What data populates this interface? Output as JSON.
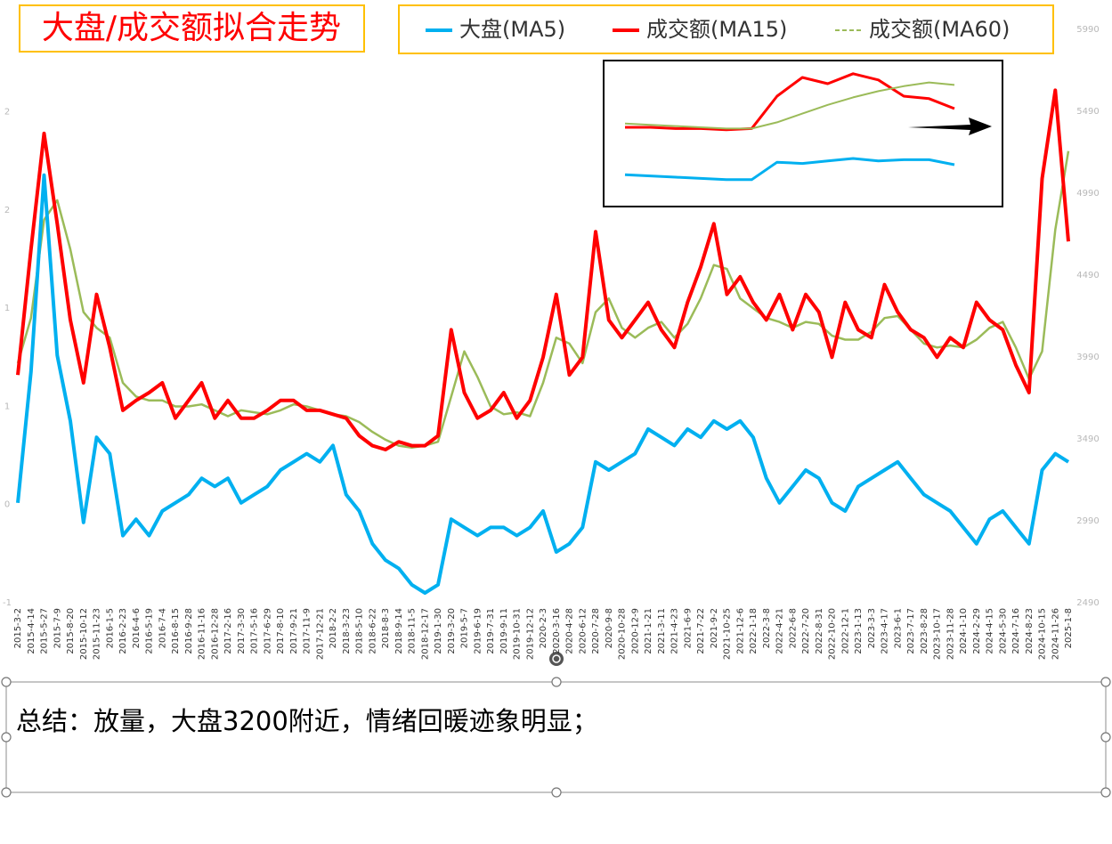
{
  "chart_data": [
    {
      "type": "line",
      "title": "大盘/成交额拟合走势",
      "categories": [
        "2015-3-2",
        "2015-4-14",
        "2015-5-27",
        "2015-7-9",
        "2015-8-20",
        "2015-10-12",
        "2015-11-23",
        "2016-1-5",
        "2016-2-23",
        "2016-4-6",
        "2016-5-19",
        "2016-7-4",
        "2016-8-15",
        "2016-9-28",
        "2016-11-16",
        "2016-12-28",
        "2017-2-16",
        "2017-3-30",
        "2017-5-16",
        "2017-6-29",
        "2017-8-10",
        "2017-9-21",
        "2017-11-9",
        "2017-12-21",
        "2018-2-2",
        "2018-3-23",
        "2018-5-10",
        "2018-6-22",
        "2018-8-3",
        "2018-9-14",
        "2018-11-5",
        "2018-12-17",
        "2019-1-30",
        "2019-3-20",
        "2019-5-7",
        "2019-6-19",
        "2019-7-31",
        "2019-9-11",
        "2019-10-31",
        "2019-12-12",
        "2020-2-3",
        "2020-3-16",
        "2020-4-28",
        "2020-6-12",
        "2020-7-28",
        "2020-9-8",
        "2020-10-28",
        "2020-12-9",
        "2021-1-21",
        "2021-3-11",
        "2021-4-23",
        "2021-6-9",
        "2021-7-22",
        "2021-9-2",
        "2021-10-25",
        "2021-12-6",
        "2022-1-18",
        "2022-3-8",
        "2022-4-21",
        "2022-6-8",
        "2022-7-20",
        "2022-8-31",
        "2022-10-20",
        "2022-12-1",
        "2023-1-13",
        "2023-3-3",
        "2023-4-17",
        "2023-6-1",
        "2023-7-17",
        "2023-8-28",
        "2023-10-17",
        "2023-11-28",
        "2024-1-10",
        "2024-2-29",
        "2024-4-15",
        "2024-5-30",
        "2024-7-16",
        "2024-8-23",
        "2024-10-15",
        "2024-11-26",
        "2025-1-8"
      ],
      "series": [
        {
          "name": "大盘(MA5)",
          "color": "#00b0f0",
          "axis": "y2",
          "width": 4,
          "values": [
            3100,
            3900,
            5100,
            4000,
            3600,
            2980,
            3500,
            3400,
            2900,
            3000,
            2900,
            3050,
            3100,
            3150,
            3250,
            3200,
            3250,
            3100,
            3150,
            3200,
            3300,
            3350,
            3400,
            3350,
            3450,
            3150,
            3050,
            2850,
            2750,
            2700,
            2600,
            2550,
            2600,
            3000,
            2950,
            2900,
            2950,
            2950,
            2900,
            2950,
            3050,
            2800,
            2850,
            2950,
            3350,
            3300,
            3350,
            3400,
            3550,
            3500,
            3450,
            3550,
            3500,
            3600,
            3550,
            3600,
            3500,
            3250,
            3100,
            3200,
            3300,
            3250,
            3100,
            3050,
            3200,
            3250,
            3300,
            3350,
            3250,
            3150,
            3100,
            3050,
            2950,
            2850,
            3000,
            3050,
            2950,
            2850,
            3300,
            3400,
            3350
          ]
        },
        {
          "name": "成交额(MA15)",
          "color": "#ff0000",
          "width": 4,
          "values": [
            0.66,
            1.3,
            1.89,
            1.43,
            0.94,
            0.62,
            1.07,
            0.8,
            0.48,
            0.53,
            0.57,
            0.62,
            0.44,
            0.53,
            0.62,
            0.44,
            0.53,
            0.44,
            0.44,
            0.48,
            0.53,
            0.53,
            0.48,
            0.48,
            0.46,
            0.44,
            0.35,
            0.3,
            0.28,
            0.32,
            0.3,
            0.3,
            0.35,
            0.89,
            0.57,
            0.44,
            0.48,
            0.57,
            0.44,
            0.53,
            0.75,
            1.07,
            0.66,
            0.75,
            1.39,
            0.94,
            0.85,
            0.94,
            1.03,
            0.89,
            0.8,
            1.03,
            1.21,
            1.43,
            1.07,
            1.16,
            1.03,
            0.94,
            1.07,
            0.89,
            1.07,
            0.98,
            0.75,
            1.03,
            0.89,
            0.85,
            1.12,
            0.98,
            0.89,
            0.85,
            0.75,
            0.85,
            0.8,
            1.03,
            0.94,
            0.89,
            0.71,
            0.57,
            1.66,
            2.11,
            1.34
          ]
        },
        {
          "name": "成交额(MA60)",
          "color": "#9bbb59",
          "width": 2.5,
          "dash": true,
          "values": [
            0.72,
            0.95,
            1.45,
            1.55,
            1.3,
            0.98,
            0.9,
            0.85,
            0.62,
            0.55,
            0.53,
            0.53,
            0.5,
            0.5,
            0.51,
            0.48,
            0.45,
            0.48,
            0.47,
            0.46,
            0.48,
            0.51,
            0.5,
            0.48,
            0.46,
            0.45,
            0.42,
            0.37,
            0.33,
            0.3,
            0.29,
            0.3,
            0.32,
            0.55,
            0.78,
            0.65,
            0.5,
            0.46,
            0.47,
            0.45,
            0.62,
            0.85,
            0.82,
            0.72,
            0.98,
            1.05,
            0.9,
            0.85,
            0.9,
            0.93,
            0.85,
            0.92,
            1.05,
            1.22,
            1.2,
            1.05,
            1.0,
            0.95,
            0.93,
            0.9,
            0.93,
            0.92,
            0.86,
            0.84,
            0.84,
            0.88,
            0.95,
            0.96,
            0.89,
            0.82,
            0.8,
            0.81,
            0.8,
            0.84,
            0.9,
            0.93,
            0.8,
            0.64,
            0.78,
            1.4,
            1.8
          ]
        }
      ],
      "ylim": [
        -0.5,
        2.42
      ],
      "yticks": [
        {
          "value": -0.5,
          "label": "-1"
        },
        {
          "value": 0,
          "label": "0"
        },
        {
          "value": 0.5,
          "label": "1"
        },
        {
          "value": 1,
          "label": "1"
        },
        {
          "value": 1.5,
          "label": "2"
        },
        {
          "value": 2,
          "label": "2"
        }
      ],
      "y2lim": [
        2490,
        5990
      ],
      "y2ticks": [
        2490,
        2990,
        3490,
        3990,
        4490,
        4990,
        5490,
        5990
      ]
    },
    {
      "type": "line",
      "series": [
        {
          "color": "#ff0000",
          "width": 3,
          "values": [
            5.5,
            5.5,
            5.4,
            5.4,
            5.3,
            5.4,
            8.0,
            9.5,
            9.0,
            9.8,
            9.3,
            8.0,
            7.8,
            7.0
          ]
        },
        {
          "color": "#9bbb59",
          "width": 2,
          "values": [
            5.8,
            5.7,
            5.6,
            5.5,
            5.4,
            5.4,
            5.9,
            6.6,
            7.3,
            7.9,
            8.4,
            8.8,
            9.1,
            8.9
          ]
        },
        {
          "color": "#00b0f0",
          "width": 3,
          "values": [
            1.7,
            1.6,
            1.5,
            1.4,
            1.3,
            1.3,
            2.7,
            2.6,
            2.8,
            3.0,
            2.8,
            2.9,
            2.9,
            2.5
          ]
        }
      ],
      "ylim": [
        0,
        10
      ]
    }
  ],
  "text_box": {
    "text": "总结：放量，大盘3200附近，情绪回暖迹象明显；"
  }
}
